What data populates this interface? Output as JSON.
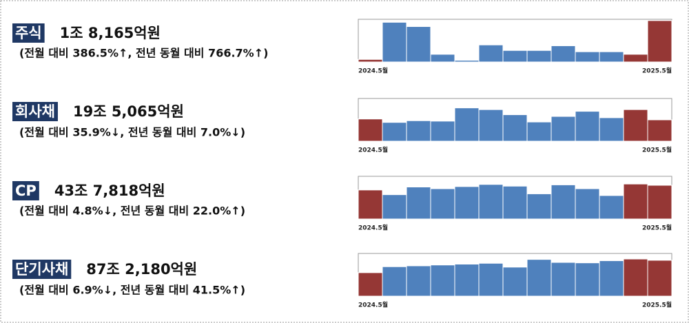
{
  "chart_data": [
    {
      "type": "bar",
      "title": "주식",
      "subtitle": "1조 8,165억원",
      "note": "(전월 대비 386.5%↑, 전년 동월 대비 766.7%↑)",
      "categories": [
        "2024.5월",
        null,
        null,
        null,
        null,
        null,
        null,
        null,
        null,
        null,
        null,
        null,
        "2025.5월"
      ],
      "values": [
        6,
        93,
        83,
        18,
        4,
        40,
        27,
        27,
        38,
        24,
        24,
        18,
        97
      ],
      "colors": [
        "#953735",
        "#4f81bd",
        "#4f81bd",
        "#4f81bd",
        "#4f81bd",
        "#4f81bd",
        "#4f81bd",
        "#4f81bd",
        "#4f81bd",
        "#4f81bd",
        "#4f81bd",
        "#953735",
        "#953735"
      ],
      "ylim": [
        0,
        100
      ]
    },
    {
      "type": "bar",
      "title": "회사채",
      "subtitle": "19조 5,065억원",
      "note": "(전월 대비 35.9%↓, 전년 동월 대비 7.0%↓)",
      "categories": [
        "2024.5월",
        null,
        null,
        null,
        null,
        null,
        null,
        null,
        null,
        null,
        null,
        null,
        "2025.5월"
      ],
      "values": [
        52,
        44,
        48,
        47,
        78,
        74,
        62,
        45,
        58,
        70,
        55,
        74,
        50
      ],
      "colors": [
        "#953735",
        "#4f81bd",
        "#4f81bd",
        "#4f81bd",
        "#4f81bd",
        "#4f81bd",
        "#4f81bd",
        "#4f81bd",
        "#4f81bd",
        "#4f81bd",
        "#4f81bd",
        "#953735",
        "#953735"
      ],
      "ylim": [
        0,
        100
      ]
    },
    {
      "type": "bar",
      "title": "CP",
      "subtitle": "43조 7,818억원",
      "note": "(전월 대비 4.8%↓, 전년 동월 대비 22.0%↑)",
      "categories": [
        "2024.5월",
        null,
        null,
        null,
        null,
        null,
        null,
        null,
        null,
        null,
        null,
        null,
        "2025.5월"
      ],
      "values": [
        68,
        57,
        75,
        71,
        76,
        81,
        77,
        59,
        80,
        71,
        55,
        82,
        79
      ],
      "colors": [
        "#953735",
        "#4f81bd",
        "#4f81bd",
        "#4f81bd",
        "#4f81bd",
        "#4f81bd",
        "#4f81bd",
        "#4f81bd",
        "#4f81bd",
        "#4f81bd",
        "#4f81bd",
        "#953735",
        "#953735"
      ],
      "ylim": [
        0,
        100
      ]
    },
    {
      "type": "bar",
      "title": "단기사채",
      "subtitle": "87조 2,180억원",
      "note": "(전월 대비 6.9%↓, 전년 동월 대비 41.5%↑)",
      "categories": [
        "2024.5월",
        null,
        null,
        null,
        null,
        null,
        null,
        null,
        null,
        null,
        null,
        null,
        "2025.5월"
      ],
      "values": [
        55,
        69,
        71,
        73,
        75,
        77,
        68,
        86,
        79,
        78,
        83,
        87,
        84
      ],
      "colors": [
        "#953735",
        "#4f81bd",
        "#4f81bd",
        "#4f81bd",
        "#4f81bd",
        "#4f81bd",
        "#4f81bd",
        "#4f81bd",
        "#4f81bd",
        "#4f81bd",
        "#4f81bd",
        "#953735",
        "#953735"
      ],
      "ylim": [
        0,
        100
      ]
    }
  ]
}
